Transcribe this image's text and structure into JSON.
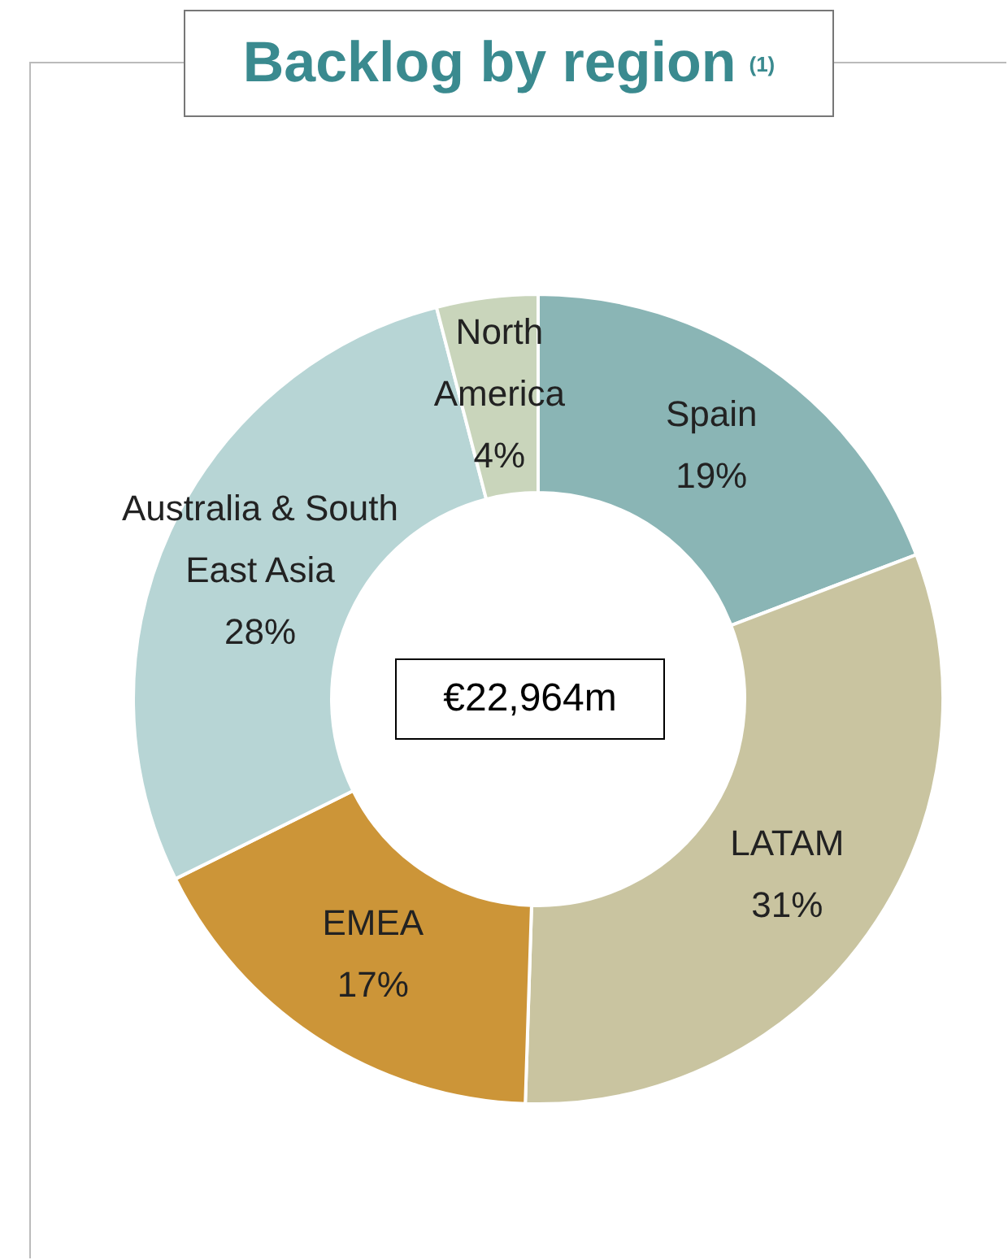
{
  "chart_data": {
    "type": "donut",
    "title": "Backlog by region $^{(1)}$",
    "categories": [
      "Spain",
      "LATAM",
      "EMEA",
      "Australia & South East Asia",
      "North America"
    ],
    "values": [
      19,
      31,
      17,
      28,
      4
    ],
    "value_labels": [
      "19%",
      "31%",
      "17%",
      "28%",
      "4%"
    ],
    "colors": [
      "#8ab5b5",
      "#c9c4a0",
      "#cc9538",
      "#b7d5d5",
      "#c9d5bb"
    ],
    "annotations": [
      "€22,964m"
    ]
  }
}
